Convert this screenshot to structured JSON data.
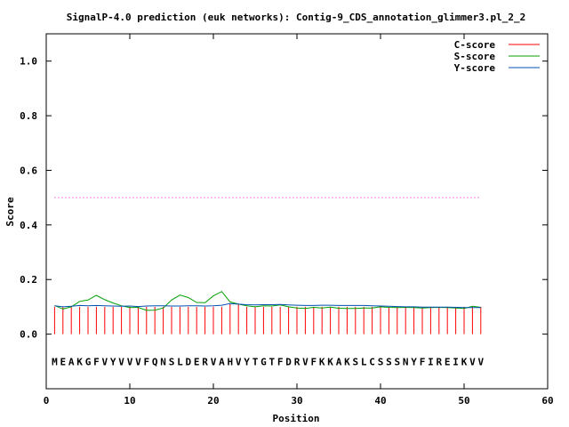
{
  "chart_data": {
    "type": "line",
    "title": "SignalP-4.0 prediction (euk networks): Contig-9_CDS_annotation_glimmer3.pl_2_2",
    "xlabel": "Position",
    "ylabel": "Score",
    "xlim": [
      0,
      60
    ],
    "ylim": [
      -0.2,
      1.1
    ],
    "x_ticks": [
      "0",
      "10",
      "20",
      "30",
      "40",
      "50",
      "60"
    ],
    "y_ticks": [
      "0.0",
      "0.2",
      "0.4",
      "0.6",
      "0.8",
      "1.0"
    ],
    "threshold": 0.5,
    "legend_position": "top-right",
    "sequence": [
      "M",
      "E",
      "A",
      "K",
      "G",
      "F",
      "V",
      "Y",
      "V",
      "V",
      "V",
      "F",
      "Q",
      "N",
      "S",
      "L",
      "D",
      "E",
      "R",
      "V",
      "A",
      "H",
      "V",
      "Y",
      "T",
      "G",
      "T",
      "F",
      "D",
      "R",
      "V",
      "F",
      "K",
      "K",
      "A",
      "K",
      "S",
      "L",
      "C",
      "S",
      "S",
      "S",
      "N",
      "Y",
      "F",
      "I",
      "R",
      "E",
      "I",
      "K",
      "V",
      "V"
    ],
    "series": [
      {
        "name": "C-score",
        "color": "#ff0000",
        "style": "impulses",
        "values": [
          0.1,
          0.1,
          0.1,
          0.1,
          0.1,
          0.1,
          0.1,
          0.1,
          0.1,
          0.1,
          0.1,
          0.1,
          0.1,
          0.1,
          0.1,
          0.1,
          0.1,
          0.1,
          0.1,
          0.1,
          0.1,
          0.11,
          0.11,
          0.1,
          0.1,
          0.1,
          0.1,
          0.1,
          0.1,
          0.1,
          0.1,
          0.1,
          0.1,
          0.1,
          0.1,
          0.1,
          0.1,
          0.1,
          0.1,
          0.1,
          0.1,
          0.1,
          0.1,
          0.1,
          0.1,
          0.1,
          0.1,
          0.1,
          0.1,
          0.1,
          0.1,
          0.1
        ]
      },
      {
        "name": "S-score",
        "color": "#00a000",
        "style": "line",
        "values": [
          0.105,
          0.092,
          0.1,
          0.12,
          0.125,
          0.142,
          0.126,
          0.114,
          0.104,
          0.097,
          0.098,
          0.087,
          0.088,
          0.096,
          0.125,
          0.143,
          0.134,
          0.116,
          0.115,
          0.14,
          0.156,
          0.118,
          0.11,
          0.104,
          0.1,
          0.104,
          0.103,
          0.107,
          0.1,
          0.096,
          0.094,
          0.098,
          0.096,
          0.099,
          0.095,
          0.094,
          0.094,
          0.096,
          0.096,
          0.1,
          0.098,
          0.097,
          0.098,
          0.097,
          0.096,
          0.097,
          0.098,
          0.097,
          0.096,
          0.094,
          0.102,
          0.098
        ]
      },
      {
        "name": "Y-score",
        "color": "#0050b0",
        "style": "line",
        "values": [
          0.104,
          0.1,
          0.102,
          0.105,
          0.104,
          0.105,
          0.104,
          0.103,
          0.102,
          0.103,
          0.101,
          0.103,
          0.104,
          0.104,
          0.103,
          0.103,
          0.104,
          0.104,
          0.103,
          0.104,
          0.106,
          0.112,
          0.11,
          0.108,
          0.107,
          0.108,
          0.108,
          0.109,
          0.107,
          0.106,
          0.105,
          0.105,
          0.106,
          0.106,
          0.105,
          0.105,
          0.105,
          0.105,
          0.104,
          0.103,
          0.102,
          0.101,
          0.1,
          0.1,
          0.099,
          0.099,
          0.099,
          0.099,
          0.098,
          0.097,
          0.097,
          0.097
        ]
      }
    ]
  }
}
